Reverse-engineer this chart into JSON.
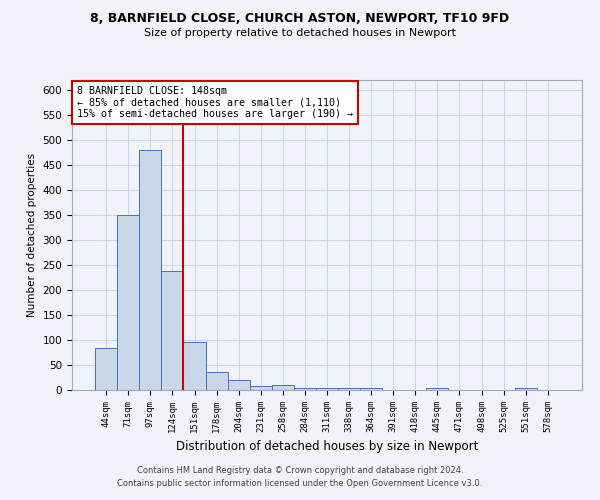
{
  "title1": "8, BARNFIELD CLOSE, CHURCH ASTON, NEWPORT, TF10 9FD",
  "title2": "Size of property relative to detached houses in Newport",
  "xlabel": "Distribution of detached houses by size in Newport",
  "ylabel": "Number of detached properties",
  "categories": [
    "44sqm",
    "71sqm",
    "97sqm",
    "124sqm",
    "151sqm",
    "178sqm",
    "204sqm",
    "231sqm",
    "258sqm",
    "284sqm",
    "311sqm",
    "338sqm",
    "364sqm",
    "391sqm",
    "418sqm",
    "445sqm",
    "471sqm",
    "498sqm",
    "525sqm",
    "551sqm",
    "578sqm"
  ],
  "values": [
    85,
    350,
    480,
    238,
    97,
    36,
    20,
    8,
    10,
    5,
    5,
    5,
    5,
    0,
    0,
    5,
    0,
    0,
    0,
    5,
    0
  ],
  "bar_color": "#c8d8e8",
  "bar_edge_color": "#4472c4",
  "vline_color": "#cc0000",
  "ylim": [
    0,
    620
  ],
  "yticks": [
    0,
    50,
    100,
    150,
    200,
    250,
    300,
    350,
    400,
    450,
    500,
    550,
    600
  ],
  "annotation_box_text": "8 BARNFIELD CLOSE: 148sqm\n← 85% of detached houses are smaller (1,110)\n15% of semi-detached houses are larger (190) →",
  "footer_text": "Contains HM Land Registry data © Crown copyright and database right 2024.\nContains public sector information licensed under the Open Government Licence v3.0.",
  "background_color": "#f0f4fa",
  "grid_color": "#c8d4e8"
}
